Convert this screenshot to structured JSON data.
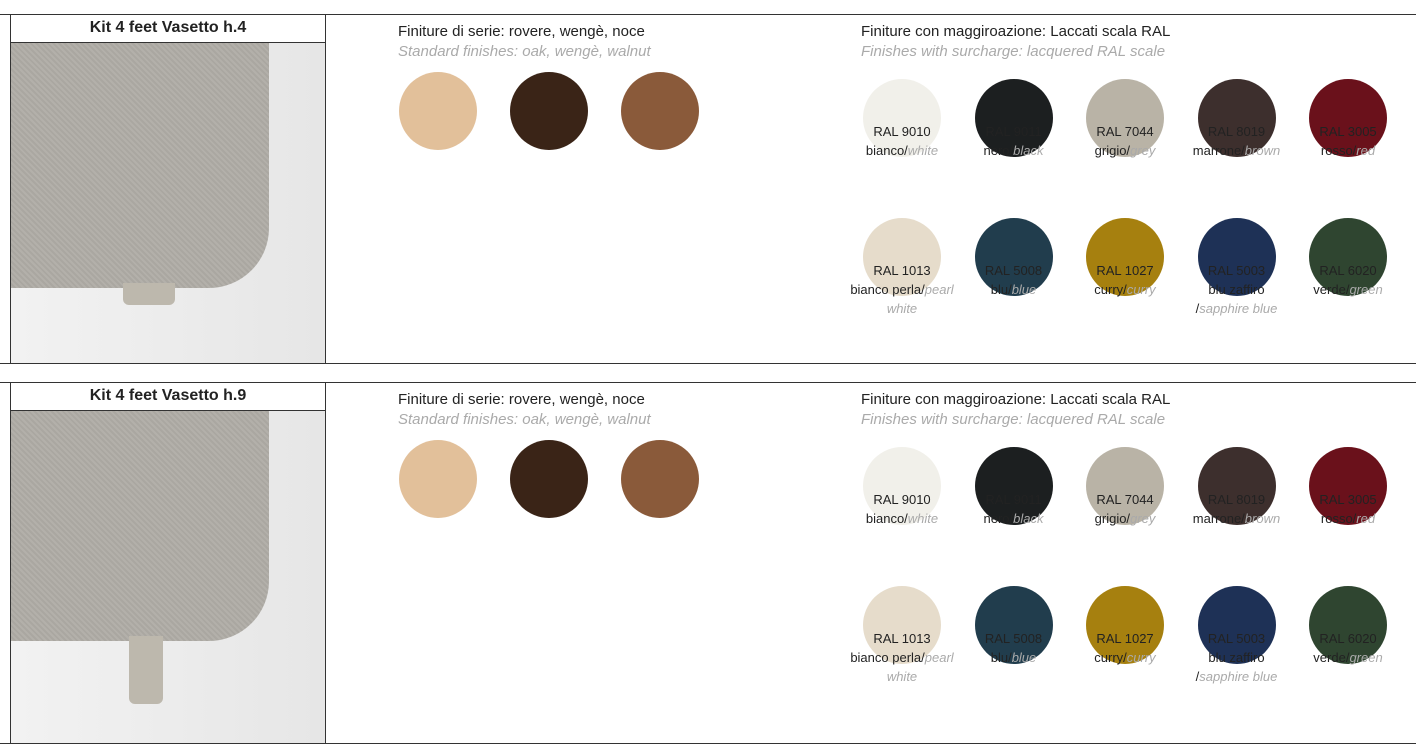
{
  "sections": [
    {
      "title": "Kit 4 feet Vasetto h.4",
      "standard": {
        "heading": "Finiture di serie: rovere, wengè, noce",
        "subheading": "Standard finishes: oak, wengè, walnut",
        "swatches": [
          "#e2c09a",
          "#3a2417",
          "#8a5a3a"
        ]
      },
      "surcharge": {
        "heading": "Finiture con maggiroazione: Laccati scala RAL",
        "subheading": "Finishes with surcharge: lacquered RAL scale",
        "swatches": [
          {
            "code": "RAL 9010",
            "label_it": "bianco/",
            "label_en": "white",
            "color": "#f1f0ea"
          },
          {
            "code": "RAL 9011",
            "label_it": "nero/",
            "label_en": "black",
            "color": "#1c1f20"
          },
          {
            "code": "RAL 7044",
            "label_it": "grigio/",
            "label_en": "grey",
            "color": "#b9b3a6"
          },
          {
            "code": "RAL 8019",
            "label_it": "marrone/",
            "label_en": "brown",
            "color": "#3d2f2d"
          },
          {
            "code": "RAL 3005",
            "label_it": "rosso/",
            "label_en": "red",
            "color": "#6a111b"
          },
          {
            "code": "RAL 1013",
            "label_it": "bianco perla/",
            "label_en": "pearl white",
            "color": "#e6dccb"
          },
          {
            "code": "RAL 5008",
            "label_it": "blu/",
            "label_en": "blue",
            "color": "#213d4d"
          },
          {
            "code": "RAL 1027",
            "label_it": "curry/",
            "label_en": "curry",
            "color": "#a6800f"
          },
          {
            "code": "RAL 5003",
            "label_it": "blu zaffiro /",
            "label_en": "sapphire blue",
            "color": "#1e3156"
          },
          {
            "code": "RAL 6020",
            "label_it": "verde/",
            "label_en": "green",
            "color": "#2f4530"
          }
        ]
      }
    },
    {
      "title": "Kit 4 feet Vasetto h.9",
      "standard": {
        "heading": "Finiture di serie: rovere, wengè, noce",
        "subheading": "Standard finishes: oak, wengè, walnut",
        "swatches": [
          "#e2c09a",
          "#3a2417",
          "#8a5a3a"
        ]
      },
      "surcharge": {
        "heading": "Finiture con maggiroazione: Laccati scala RAL",
        "subheading": "Finishes with surcharge: lacquered RAL scale",
        "swatches": [
          {
            "code": "RAL 9010",
            "label_it": "bianco/",
            "label_en": "white",
            "color": "#f1f0ea"
          },
          {
            "code": "RAL 9011",
            "label_it": "nero/",
            "label_en": "black",
            "color": "#1c1f20"
          },
          {
            "code": "RAL 7044",
            "label_it": "grigio/",
            "label_en": "grey",
            "color": "#b9b3a6"
          },
          {
            "code": "RAL 8019",
            "label_it": "marrone/",
            "label_en": "brown",
            "color": "#3d2f2d"
          },
          {
            "code": "RAL 3005",
            "label_it": "rosso/",
            "label_en": "red",
            "color": "#6a111b"
          },
          {
            "code": "RAL 1013",
            "label_it": "bianco perla/",
            "label_en": "pearl white",
            "color": "#e6dccb"
          },
          {
            "code": "RAL 5008",
            "label_it": "blu/",
            "label_en": "blue",
            "color": "#213d4d"
          },
          {
            "code": "RAL 1027",
            "label_it": "curry/",
            "label_en": "curry",
            "color": "#a6800f"
          },
          {
            "code": "RAL 5003",
            "label_it": "blu zaffiro /",
            "label_en": "sapphire blue",
            "color": "#1e3156"
          },
          {
            "code": "RAL 6020",
            "label_it": "verde/",
            "label_en": "green",
            "color": "#2f4530"
          }
        ]
      }
    }
  ]
}
